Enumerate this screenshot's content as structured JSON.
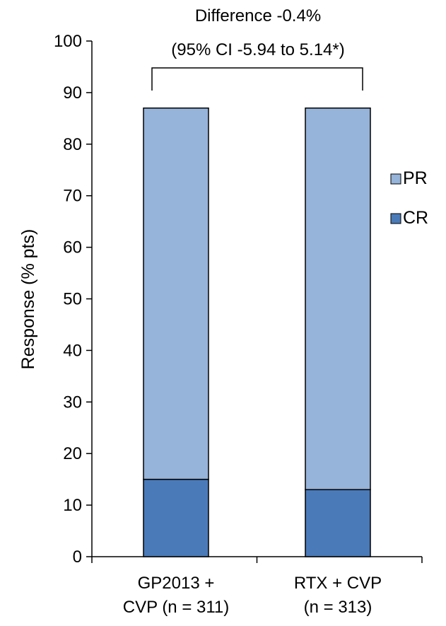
{
  "chart_data": {
    "type": "bar",
    "stacked": true,
    "categories": [
      [
        "GP2013 +",
        "CVP (n = 311)"
      ],
      [
        "RTX + CVP",
        "(n = 313)"
      ]
    ],
    "series": [
      {
        "name": "CR",
        "values": [
          15,
          13
        ],
        "color": "#4a7ab8"
      },
      {
        "name": "PR",
        "values": [
          72,
          74
        ],
        "color": "#96b3d9"
      }
    ],
    "ylabel": "Response (% pts)",
    "ylim": [
      0,
      100
    ],
    "yticks": [
      0,
      10,
      20,
      30,
      40,
      50,
      60,
      70,
      80,
      90,
      100
    ],
    "grid": false,
    "legend": {
      "position": "right",
      "entries": [
        {
          "name": "PR",
          "color": "#96b3d9"
        },
        {
          "name": "CR",
          "color": "#4a7ab8"
        }
      ]
    },
    "annotation": {
      "line1": "Difference  -0.4%",
      "line2": "(95% CI  -5.94 to 5.14*)"
    }
  }
}
